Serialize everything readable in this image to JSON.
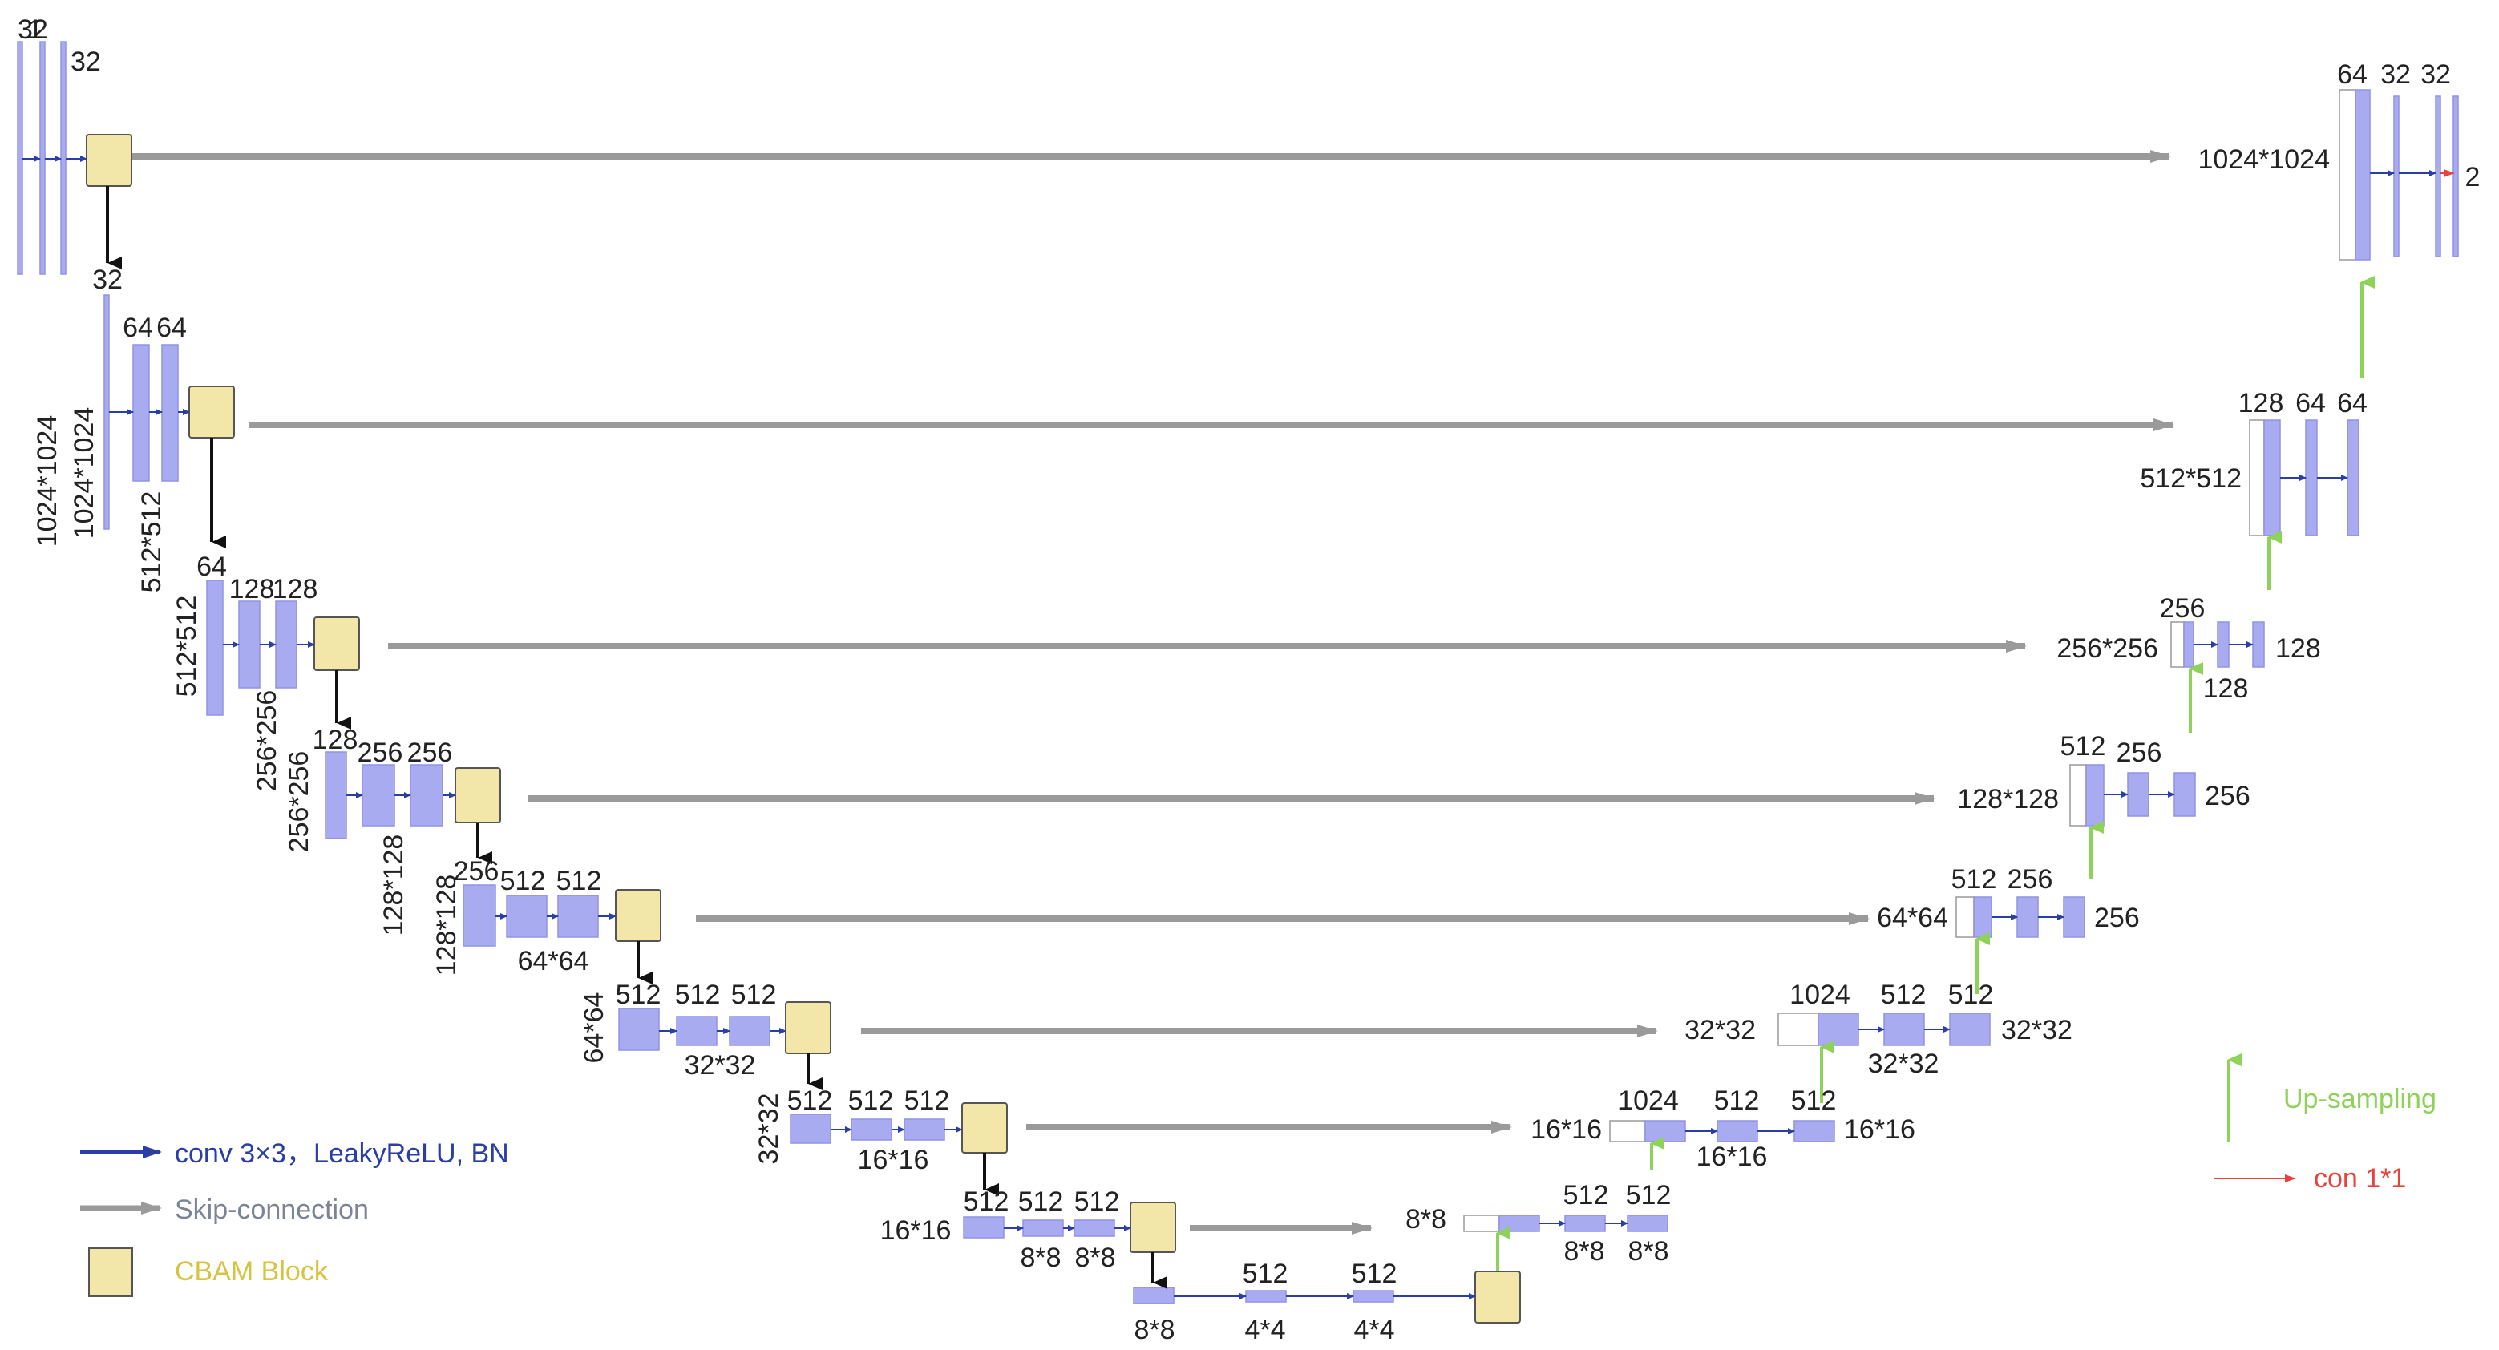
{
  "colors": {
    "feature_map": "#a9abf0",
    "feature_map_stroke": "#8f92e6",
    "cbam_fill": "#f2e6a8",
    "cbam_stroke": "#555555",
    "conv_arrow": "#2a3ea6",
    "skip_arrow": "#9a9a9a",
    "pool_arrow": "#111111",
    "upsample_arrow": "#8fd25a",
    "conv1x1_arrow": "#e8423c",
    "legend_conv_text": "#2a3ea6",
    "legend_skip_text": "#7a8594",
    "legend_cbam_text": "#d7c341",
    "legend_up_text": "#8fd25a",
    "legend_con_text": "#e8423c"
  },
  "labels": [
    {
      "id": "e1-ch-in",
      "text": "1"
    },
    {
      "id": "e1-ch-a",
      "text": "32"
    },
    {
      "id": "e1-ch-b",
      "text": "32"
    },
    {
      "id": "e1-size",
      "text": "1024*1024"
    },
    {
      "id": "e2-ch-in",
      "text": "32"
    },
    {
      "id": "e2-ch-a",
      "text": "64"
    },
    {
      "id": "e2-ch-b",
      "text": "64"
    },
    {
      "id": "e2-size-in",
      "text": "1024*1024"
    },
    {
      "id": "e2-size-out",
      "text": "512*512"
    },
    {
      "id": "e3-ch-in",
      "text": "64"
    },
    {
      "id": "e3-ch-a",
      "text": "128"
    },
    {
      "id": "e3-ch-b",
      "text": "128"
    },
    {
      "id": "e3-size-in",
      "text": "512*512"
    },
    {
      "id": "e3-size-out",
      "text": "256*256"
    },
    {
      "id": "e4-ch-in",
      "text": "128"
    },
    {
      "id": "e4-ch-a",
      "text": "256"
    },
    {
      "id": "e4-ch-b",
      "text": "256"
    },
    {
      "id": "e4-size-in",
      "text": "256*256"
    },
    {
      "id": "e4-size-out",
      "text": "128*128"
    },
    {
      "id": "e5-ch-in",
      "text": "256"
    },
    {
      "id": "e5-ch-a",
      "text": "512"
    },
    {
      "id": "e5-ch-b",
      "text": "512"
    },
    {
      "id": "e5-size-in",
      "text": "128*128"
    },
    {
      "id": "e5-size-out",
      "text": "64*64"
    },
    {
      "id": "e6-ch-in",
      "text": "512"
    },
    {
      "id": "e6-ch-a",
      "text": "512"
    },
    {
      "id": "e6-ch-b",
      "text": "512"
    },
    {
      "id": "e6-size-in",
      "text": "64*64"
    },
    {
      "id": "e6-size-out",
      "text": "32*32"
    },
    {
      "id": "e7-ch-in",
      "text": "512"
    },
    {
      "id": "e7-ch-a",
      "text": "512"
    },
    {
      "id": "e7-ch-b",
      "text": "512"
    },
    {
      "id": "e7-size-in",
      "text": "32*32"
    },
    {
      "id": "e7-size-out",
      "text": "16*16"
    },
    {
      "id": "e8-ch-in",
      "text": "512"
    },
    {
      "id": "e8-ch-a",
      "text": "512"
    },
    {
      "id": "e8-ch-b",
      "text": "512"
    },
    {
      "id": "e8-size-in",
      "text": "16*16"
    },
    {
      "id": "e8-size-a",
      "text": "8*8"
    },
    {
      "id": "e8-size-b",
      "text": "8*8"
    },
    {
      "id": "b-ch-a",
      "text": "512"
    },
    {
      "id": "b-ch-b",
      "text": "512"
    },
    {
      "id": "b-size-in",
      "text": "8*8"
    },
    {
      "id": "b-size-a",
      "text": "4*4"
    },
    {
      "id": "b-size-b",
      "text": "4*4"
    },
    {
      "id": "d8-size-in",
      "text": "8*8"
    },
    {
      "id": "d8-ch-a",
      "text": "512"
    },
    {
      "id": "d8-ch-b",
      "text": "512"
    },
    {
      "id": "d8-size-a",
      "text": "8*8"
    },
    {
      "id": "d8-size-b",
      "text": "8*8"
    },
    {
      "id": "d7-size-in",
      "text": "16*16"
    },
    {
      "id": "d7-ch-in",
      "text": "1024"
    },
    {
      "id": "d7-ch-a",
      "text": "512"
    },
    {
      "id": "d7-ch-b",
      "text": "512"
    },
    {
      "id": "d7-size-a",
      "text": "16*16"
    },
    {
      "id": "d7-size-out",
      "text": "16*16"
    },
    {
      "id": "d6-size-in",
      "text": "32*32"
    },
    {
      "id": "d6-ch-in",
      "text": "1024"
    },
    {
      "id": "d6-ch-a",
      "text": "512"
    },
    {
      "id": "d6-ch-b",
      "text": "512"
    },
    {
      "id": "d6-size-a",
      "text": "32*32"
    },
    {
      "id": "d6-size-out",
      "text": "32*32"
    },
    {
      "id": "d5-size-in",
      "text": "64*64"
    },
    {
      "id": "d5-ch-in",
      "text": "512"
    },
    {
      "id": "d5-ch-a",
      "text": "256"
    },
    {
      "id": "d5-ch-out",
      "text": "256"
    },
    {
      "id": "d4-size-in",
      "text": "128*128"
    },
    {
      "id": "d4-ch-in",
      "text": "512"
    },
    {
      "id": "d4-ch-a",
      "text": "256"
    },
    {
      "id": "d4-ch-out",
      "text": "256"
    },
    {
      "id": "d3-size-in",
      "text": "256*256"
    },
    {
      "id": "d3-ch-in",
      "text": "256"
    },
    {
      "id": "d3-ch-mid",
      "text": "128"
    },
    {
      "id": "d3-ch-out",
      "text": "128"
    },
    {
      "id": "d2-size-in",
      "text": "512*512"
    },
    {
      "id": "d2-ch-in",
      "text": "128"
    },
    {
      "id": "d2-ch-a",
      "text": "64"
    },
    {
      "id": "d2-ch-b",
      "text": "64"
    },
    {
      "id": "d1-size-in",
      "text": "1024*1024"
    },
    {
      "id": "d1-ch-in",
      "text": "64"
    },
    {
      "id": "d1-ch-a",
      "text": "32"
    },
    {
      "id": "d1-ch-b",
      "text": "32"
    },
    {
      "id": "d1-ch-out",
      "text": "2"
    }
  ],
  "legend": {
    "conv": "conv 3×3，LeakyReLU, BN",
    "skip": "Skip-connection",
    "cbam": "CBAM Block",
    "upsampling": "Up-sampling",
    "con1x1": "con 1*1"
  }
}
